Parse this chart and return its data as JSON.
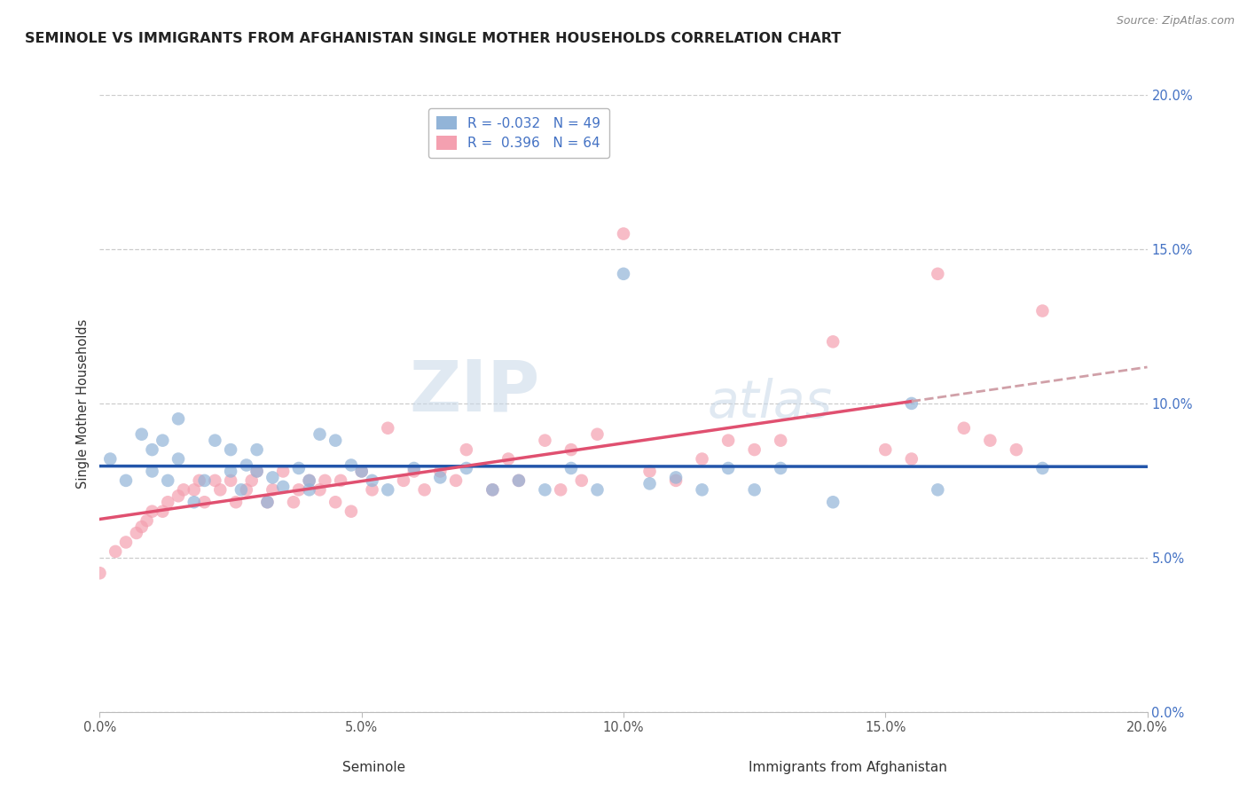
{
  "title": "SEMINOLE VS IMMIGRANTS FROM AFGHANISTAN SINGLE MOTHER HOUSEHOLDS CORRELATION CHART",
  "source": "Source: ZipAtlas.com",
  "xlabel_seminole": "Seminole",
  "xlabel_afghanistan": "Immigrants from Afghanistan",
  "ylabel": "Single Mother Households",
  "xlim": [
    0.0,
    0.2
  ],
  "ylim": [
    0.0,
    0.2
  ],
  "legend_blue_r": "-0.032",
  "legend_blue_n": "49",
  "legend_pink_r": "0.396",
  "legend_pink_n": "64",
  "blue_color": "#92B4D8",
  "pink_color": "#F4A0B0",
  "trendline_blue_color": "#2255AA",
  "trendline_pink_color": "#E05070",
  "trendline_pink_dashed_color": "#D0A0A8",
  "watermark_zip": "ZIP",
  "watermark_atlas": "atlas",
  "seminole_x": [
    0.002,
    0.005,
    0.008,
    0.01,
    0.01,
    0.012,
    0.013,
    0.015,
    0.015,
    0.018,
    0.02,
    0.022,
    0.025,
    0.025,
    0.027,
    0.028,
    0.03,
    0.03,
    0.032,
    0.033,
    0.035,
    0.038,
    0.04,
    0.04,
    0.042,
    0.045,
    0.048,
    0.05,
    0.052,
    0.055,
    0.06,
    0.065,
    0.07,
    0.075,
    0.08,
    0.085,
    0.09,
    0.095,
    0.1,
    0.105,
    0.11,
    0.115,
    0.12,
    0.125,
    0.13,
    0.14,
    0.155,
    0.16,
    0.18
  ],
  "seminole_y": [
    0.082,
    0.075,
    0.09,
    0.085,
    0.078,
    0.088,
    0.075,
    0.082,
    0.095,
    0.068,
    0.075,
    0.088,
    0.085,
    0.078,
    0.072,
    0.08,
    0.078,
    0.085,
    0.068,
    0.076,
    0.073,
    0.079,
    0.075,
    0.072,
    0.09,
    0.088,
    0.08,
    0.078,
    0.075,
    0.072,
    0.079,
    0.076,
    0.079,
    0.072,
    0.075,
    0.072,
    0.079,
    0.072,
    0.142,
    0.074,
    0.076,
    0.072,
    0.079,
    0.072,
    0.079,
    0.068,
    0.1,
    0.072,
    0.079
  ],
  "afghanistan_x": [
    0.0,
    0.003,
    0.005,
    0.007,
    0.008,
    0.009,
    0.01,
    0.012,
    0.013,
    0.015,
    0.016,
    0.018,
    0.019,
    0.02,
    0.022,
    0.023,
    0.025,
    0.026,
    0.028,
    0.029,
    0.03,
    0.032,
    0.033,
    0.035,
    0.037,
    0.038,
    0.04,
    0.042,
    0.043,
    0.045,
    0.046,
    0.048,
    0.05,
    0.052,
    0.055,
    0.058,
    0.06,
    0.062,
    0.065,
    0.068,
    0.07,
    0.075,
    0.078,
    0.08,
    0.085,
    0.088,
    0.09,
    0.092,
    0.095,
    0.1,
    0.105,
    0.11,
    0.115,
    0.12,
    0.125,
    0.13,
    0.14,
    0.15,
    0.155,
    0.16,
    0.165,
    0.17,
    0.175,
    0.18
  ],
  "afghanistan_y": [
    0.045,
    0.052,
    0.055,
    0.058,
    0.06,
    0.062,
    0.065,
    0.065,
    0.068,
    0.07,
    0.072,
    0.072,
    0.075,
    0.068,
    0.075,
    0.072,
    0.075,
    0.068,
    0.072,
    0.075,
    0.078,
    0.068,
    0.072,
    0.078,
    0.068,
    0.072,
    0.075,
    0.072,
    0.075,
    0.068,
    0.075,
    0.065,
    0.078,
    0.072,
    0.092,
    0.075,
    0.078,
    0.072,
    0.078,
    0.075,
    0.085,
    0.072,
    0.082,
    0.075,
    0.088,
    0.072,
    0.085,
    0.075,
    0.09,
    0.155,
    0.078,
    0.075,
    0.082,
    0.088,
    0.085,
    0.088,
    0.12,
    0.085,
    0.082,
    0.142,
    0.092,
    0.088,
    0.085,
    0.13
  ]
}
